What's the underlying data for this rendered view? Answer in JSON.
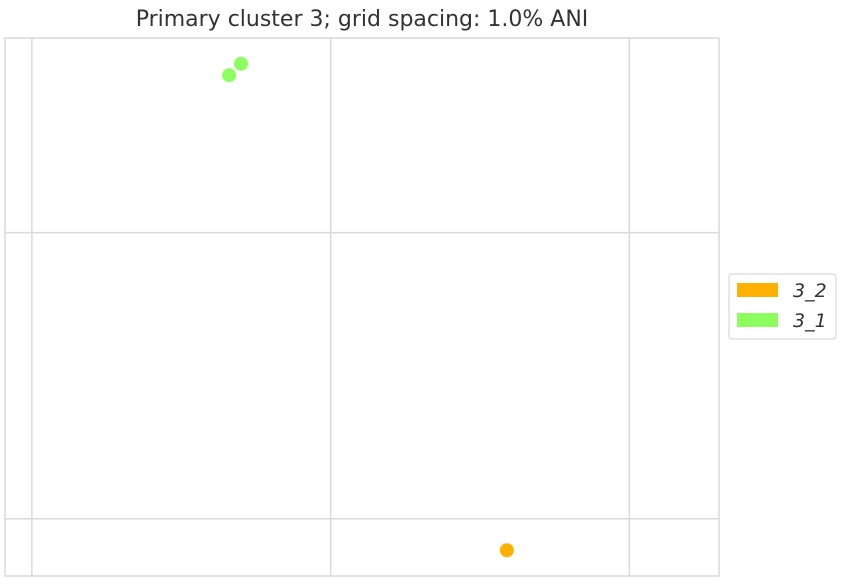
{
  "chart_data": {
    "type": "scatter",
    "title": "Primary cluster 3; grid spacing: 1.0% ANI",
    "xlabel": "",
    "ylabel": "",
    "xlim": [
      0,
      2.39
    ],
    "ylim": [
      0,
      1.88
    ],
    "grid": true,
    "grid_x_ticks": [
      0.09,
      1.09,
      2.09
    ],
    "grid_y_ticks": [
      0.2,
      1.2
    ],
    "legend_position": "right",
    "series": [
      {
        "name": "3_2",
        "color": "#FFB000",
        "points": [
          {
            "x": 1.68,
            "y": 0.09
          }
        ]
      },
      {
        "name": "3_1",
        "color": "#8CFF5F",
        "points": [
          {
            "x": 0.75,
            "y": 1.75
          },
          {
            "x": 0.79,
            "y": 1.79
          }
        ]
      }
    ]
  }
}
